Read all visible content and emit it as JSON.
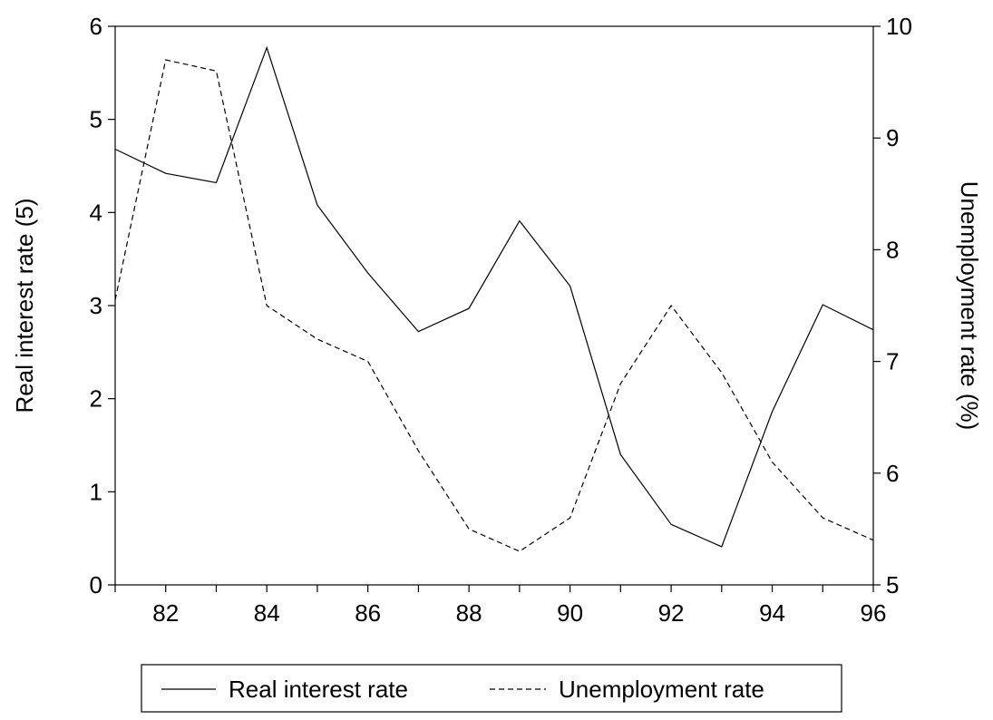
{
  "chart_data": {
    "type": "line",
    "title": "",
    "x": [
      81,
      82,
      83,
      84,
      85,
      86,
      87,
      88,
      89,
      90,
      91,
      92,
      93,
      94,
      95,
      96
    ],
    "xlim": [
      81,
      96
    ],
    "xticks": [
      "82",
      "84",
      "86",
      "88",
      "90",
      "92",
      "94",
      "96"
    ],
    "xtick_values": [
      82,
      84,
      86,
      88,
      90,
      92,
      94,
      96
    ],
    "xlabel": "",
    "ylabel_left": "Real interest rate (5)",
    "ylabel_right": "Unemployment rate (%)",
    "ylim_left": [
      0,
      6
    ],
    "ylim_right": [
      5,
      10
    ],
    "yticks_left": [
      "0",
      "1",
      "2",
      "3",
      "4",
      "5",
      "6"
    ],
    "yticks_right": [
      "5",
      "6",
      "7",
      "8",
      "9",
      "10"
    ],
    "grid": false,
    "legend_position": "bottom-center",
    "series": [
      {
        "name": "Real interest rate",
        "axis": "left",
        "line_style": "solid",
        "color": "#000000",
        "values": [
          4.68,
          4.42,
          4.32,
          5.77,
          4.08,
          3.35,
          2.72,
          2.97,
          3.91,
          3.21,
          1.4,
          0.65,
          0.41,
          1.86,
          3.01,
          2.74
        ]
      },
      {
        "name": "Unemployment rate",
        "axis": "right",
        "line_style": "dashed",
        "color": "#000000",
        "values": [
          7.55,
          9.7,
          9.6,
          7.5,
          7.2,
          7.0,
          6.2,
          5.5,
          5.3,
          5.6,
          6.8,
          7.5,
          6.9,
          6.1,
          5.6,
          5.4
        ]
      }
    ]
  }
}
